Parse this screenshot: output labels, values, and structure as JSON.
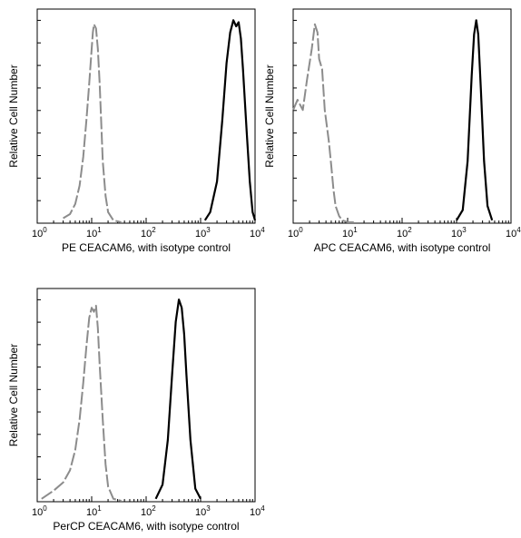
{
  "chart_data": [
    {
      "type": "line",
      "xscale": "log",
      "xlim": [
        1,
        10000
      ],
      "xticks": [
        "10",
        "10",
        "10",
        "10",
        "10"
      ],
      "xtick_exponents": [
        "0",
        "1",
        "2",
        "3",
        "4"
      ],
      "xlabel": "PE CEACAM6, with isotype control",
      "ylabel": "Relative Cell Number",
      "grid": false,
      "series": [
        {
          "role": "isotype",
          "style": "dashed",
          "color": "#8c8c8c",
          "x": [
            3,
            4,
            5,
            6,
            7,
            8,
            9,
            10,
            10.5,
            11,
            12,
            13,
            14,
            15,
            16,
            18,
            20,
            25,
            35
          ],
          "y": [
            0.02,
            0.04,
            0.09,
            0.18,
            0.32,
            0.5,
            0.68,
            0.85,
            0.93,
            0.97,
            0.95,
            0.85,
            0.68,
            0.48,
            0.3,
            0.13,
            0.05,
            0.01,
            0
          ]
        },
        {
          "role": "stained",
          "style": "solid",
          "color": "#000000",
          "x": [
            1200,
            1500,
            2000,
            2500,
            3000,
            3500,
            4000,
            4500,
            5000,
            5500,
            6000,
            7000,
            8000,
            9000,
            10000
          ],
          "y": [
            0.01,
            0.05,
            0.2,
            0.5,
            0.78,
            0.93,
            0.99,
            0.96,
            0.98,
            0.9,
            0.75,
            0.45,
            0.2,
            0.05,
            0.01
          ]
        }
      ]
    },
    {
      "type": "line",
      "xscale": "log",
      "xlim": [
        1,
        10000
      ],
      "xticks": [
        "10",
        "10",
        "10",
        "10",
        "10"
      ],
      "xtick_exponents": [
        "0",
        "1",
        "2",
        "3",
        "4"
      ],
      "xlabel": "APC CEACAM6, with isotype control",
      "ylabel": "Relative Cell Number",
      "grid": false,
      "series": [
        {
          "role": "isotype",
          "style": "dashed",
          "color": "#8c8c8c",
          "x": [
            1,
            1.2,
            1.5,
            1.8,
            2.2,
            2.5,
            2.8,
            3,
            3.4,
            3.8,
            4.5,
            5,
            5.5,
            6,
            7,
            8,
            10,
            13
          ],
          "y": [
            0.55,
            0.6,
            0.55,
            0.7,
            0.85,
            0.97,
            0.93,
            0.8,
            0.75,
            0.55,
            0.4,
            0.28,
            0.16,
            0.08,
            0.03,
            0.01,
            0,
            0
          ]
        },
        {
          "role": "stained",
          "style": "solid",
          "color": "#000000",
          "x": [
            1000,
            1300,
            1600,
            1900,
            2100,
            2300,
            2500,
            2800,
            3200,
            3700,
            4500
          ],
          "y": [
            0.01,
            0.06,
            0.3,
            0.72,
            0.92,
            0.99,
            0.92,
            0.65,
            0.3,
            0.08,
            0.01
          ]
        }
      ]
    },
    {
      "type": "line",
      "xscale": "log",
      "xlim": [
        1,
        10000
      ],
      "xticks": [
        "10",
        "10",
        "10",
        "10",
        "10"
      ],
      "xtick_exponents": [
        "0",
        "1",
        "2",
        "3",
        "4"
      ],
      "xlabel": "PerCP CEACAM6, with isotype control",
      "ylabel": "Relative Cell Number",
      "grid": false,
      "series": [
        {
          "role": "isotype",
          "style": "dashed",
          "color": "#8c8c8c",
          "x": [
            1.2,
            2,
            3,
            4,
            5,
            6,
            7,
            8,
            9,
            10,
            11,
            12,
            13,
            14,
            16,
            18,
            20,
            25,
            35
          ],
          "y": [
            0.01,
            0.05,
            0.09,
            0.15,
            0.25,
            0.4,
            0.58,
            0.76,
            0.9,
            0.95,
            0.93,
            0.96,
            0.85,
            0.67,
            0.4,
            0.18,
            0.07,
            0.01,
            0
          ]
        },
        {
          "role": "stained",
          "style": "solid",
          "color": "#000000",
          "x": [
            150,
            200,
            250,
            300,
            350,
            400,
            450,
            500,
            550,
            650,
            800,
            1000
          ],
          "y": [
            0.01,
            0.08,
            0.3,
            0.62,
            0.88,
            0.99,
            0.95,
            0.82,
            0.62,
            0.3,
            0.06,
            0.01
          ]
        }
      ]
    }
  ]
}
